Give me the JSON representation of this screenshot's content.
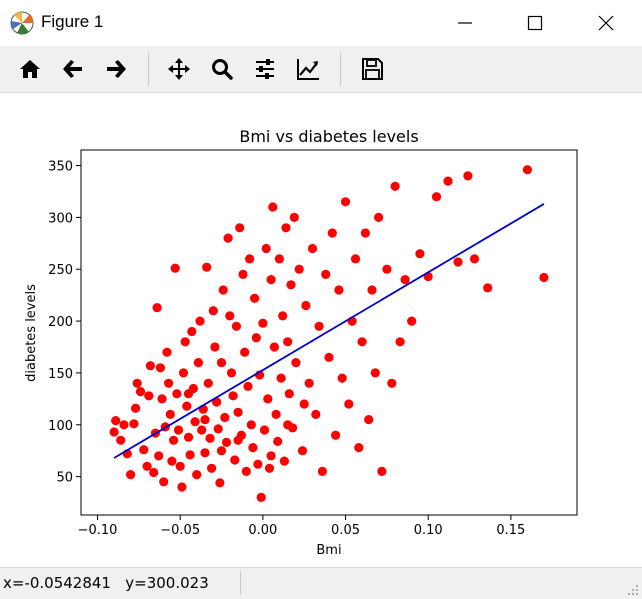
{
  "window": {
    "title": "Figure 1"
  },
  "toolbar": {
    "buttons": [
      {
        "name": "home",
        "icon": "home-icon"
      },
      {
        "name": "back",
        "icon": "arrow-left-icon"
      },
      {
        "name": "forward",
        "icon": "arrow-right-icon"
      },
      {
        "name": "pan",
        "icon": "move-icon"
      },
      {
        "name": "zoom",
        "icon": "magnifier-icon"
      },
      {
        "name": "subplots",
        "icon": "sliders-icon"
      },
      {
        "name": "customize",
        "icon": "line-chart-icon"
      },
      {
        "name": "save",
        "icon": "floppy-disk-icon"
      }
    ]
  },
  "status": {
    "coords": "x=-0.0542841   y=300.023"
  },
  "chart_data": {
    "type": "scatter",
    "title": "Bmi vs diabetes levels",
    "xlabel": "Bmi",
    "ylabel": "diabetes levels",
    "xlim": [
      -0.11,
      0.19
    ],
    "ylim": [
      13,
      365
    ],
    "xticks": [
      "−0.10",
      "−0.05",
      "0.00",
      "0.05",
      "0.10",
      "0.15"
    ],
    "xtick_values": [
      -0.1,
      -0.05,
      0.0,
      0.05,
      0.1,
      0.15
    ],
    "yticks": [
      "50",
      "100",
      "150",
      "200",
      "250",
      "300",
      "350"
    ],
    "ytick_values": [
      50,
      100,
      150,
      200,
      250,
      300,
      350
    ],
    "grid": false,
    "colors": {
      "points": "#ff0000",
      "line": "#0000cc"
    },
    "fit_line": {
      "x": [
        -0.09,
        0.17
      ],
      "y": [
        68,
        313
      ]
    },
    "points": [
      [
        -0.089,
        104
      ],
      [
        -0.09,
        93
      ],
      [
        -0.086,
        85
      ],
      [
        -0.084,
        100
      ],
      [
        -0.082,
        72
      ],
      [
        -0.08,
        52
      ],
      [
        -0.078,
        101
      ],
      [
        -0.077,
        116
      ],
      [
        -0.076,
        140
      ],
      [
        -0.074,
        132
      ],
      [
        -0.072,
        76
      ],
      [
        -0.07,
        60
      ],
      [
        -0.069,
        128
      ],
      [
        -0.068,
        157
      ],
      [
        -0.066,
        54
      ],
      [
        -0.065,
        92
      ],
      [
        -0.064,
        213
      ],
      [
        -0.063,
        70
      ],
      [
        -0.062,
        155
      ],
      [
        -0.061,
        125
      ],
      [
        -0.06,
        45
      ],
      [
        -0.059,
        98
      ],
      [
        -0.058,
        170
      ],
      [
        -0.057,
        140
      ],
      [
        -0.056,
        110
      ],
      [
        -0.055,
        65
      ],
      [
        -0.054,
        85
      ],
      [
        -0.053,
        251
      ],
      [
        -0.052,
        130
      ],
      [
        -0.051,
        95
      ],
      [
        -0.05,
        60
      ],
      [
        -0.049,
        40
      ],
      [
        -0.048,
        150
      ],
      [
        -0.047,
        180
      ],
      [
        -0.046,
        118
      ],
      [
        -0.045,
        88
      ],
      [
        -0.044,
        71
      ],
      [
        -0.043,
        190
      ],
      [
        -0.042,
        135
      ],
      [
        -0.041,
        103
      ],
      [
        -0.04,
        52
      ],
      [
        -0.039,
        160
      ],
      [
        -0.038,
        200
      ],
      [
        -0.037,
        95
      ],
      [
        -0.036,
        115
      ],
      [
        -0.035,
        73
      ],
      [
        -0.034,
        252
      ],
      [
        -0.033,
        140
      ],
      [
        -0.032,
        87
      ],
      [
        -0.031,
        58
      ],
      [
        -0.03,
        210
      ],
      [
        -0.029,
        175
      ],
      [
        -0.028,
        122
      ],
      [
        -0.027,
        96
      ],
      [
        -0.026,
        44
      ],
      [
        -0.025,
        160
      ],
      [
        -0.024,
        230
      ],
      [
        -0.023,
        107
      ],
      [
        -0.022,
        83
      ],
      [
        -0.021,
        280
      ],
      [
        -0.02,
        205
      ],
      [
        -0.019,
        150
      ],
      [
        -0.018,
        128
      ],
      [
        -0.017,
        66
      ],
      [
        -0.016,
        195
      ],
      [
        -0.015,
        112
      ],
      [
        -0.014,
        290
      ],
      [
        -0.013,
        90
      ],
      [
        -0.012,
        245
      ],
      [
        -0.011,
        170
      ],
      [
        -0.01,
        55
      ],
      [
        -0.009,
        137
      ],
      [
        -0.008,
        260
      ],
      [
        -0.007,
        100
      ],
      [
        -0.006,
        78
      ],
      [
        -0.005,
        222
      ],
      [
        -0.004,
        184
      ],
      [
        -0.003,
        62
      ],
      [
        -0.002,
        148
      ],
      [
        -0.001,
        30
      ],
      [
        0.0,
        198
      ],
      [
        0.001,
        95
      ],
      [
        0.002,
        270
      ],
      [
        0.003,
        125
      ],
      [
        0.004,
        58
      ],
      [
        0.005,
        240
      ],
      [
        0.006,
        310
      ],
      [
        0.007,
        175
      ],
      [
        0.008,
        110
      ],
      [
        0.009,
        84
      ],
      [
        0.01,
        260
      ],
      [
        0.011,
        145
      ],
      [
        0.012,
        205
      ],
      [
        0.013,
        65
      ],
      [
        0.014,
        290
      ],
      [
        0.015,
        180
      ],
      [
        0.016,
        130
      ],
      [
        0.017,
        235
      ],
      [
        0.018,
        97
      ],
      [
        0.019,
        300
      ],
      [
        0.02,
        160
      ],
      [
        0.022,
        250
      ],
      [
        0.024,
        75
      ],
      [
        0.026,
        215
      ],
      [
        0.028,
        140
      ],
      [
        0.03,
        270
      ],
      [
        0.032,
        110
      ],
      [
        0.034,
        195
      ],
      [
        0.036,
        55
      ],
      [
        0.038,
        245
      ],
      [
        0.04,
        165
      ],
      [
        0.042,
        285
      ],
      [
        0.044,
        90
      ],
      [
        0.046,
        230
      ],
      [
        0.048,
        145
      ],
      [
        0.05,
        315
      ],
      [
        0.052,
        120
      ],
      [
        0.054,
        200
      ],
      [
        0.056,
        260
      ],
      [
        0.058,
        78
      ],
      [
        0.06,
        180
      ],
      [
        0.062,
        285
      ],
      [
        0.064,
        105
      ],
      [
        0.066,
        230
      ],
      [
        0.068,
        150
      ],
      [
        0.07,
        300
      ],
      [
        0.072,
        55
      ],
      [
        0.075,
        250
      ],
      [
        0.078,
        140
      ],
      [
        0.08,
        330
      ],
      [
        0.083,
        180
      ],
      [
        0.086,
        240
      ],
      [
        0.09,
        200
      ],
      [
        0.095,
        265
      ],
      [
        0.1,
        243
      ],
      [
        0.105,
        320
      ],
      [
        0.112,
        335
      ],
      [
        0.118,
        257
      ],
      [
        0.124,
        340
      ],
      [
        0.128,
        260
      ],
      [
        0.136,
        232
      ],
      [
        0.16,
        346
      ],
      [
        0.17,
        242
      ],
      [
        -0.035,
        105
      ],
      [
        -0.015,
        85
      ],
      [
        0.005,
        70
      ],
      [
        -0.025,
        75
      ],
      [
        0.015,
        100
      ],
      [
        -0.045,
        130
      ],
      [
        0.025,
        120
      ]
    ]
  }
}
